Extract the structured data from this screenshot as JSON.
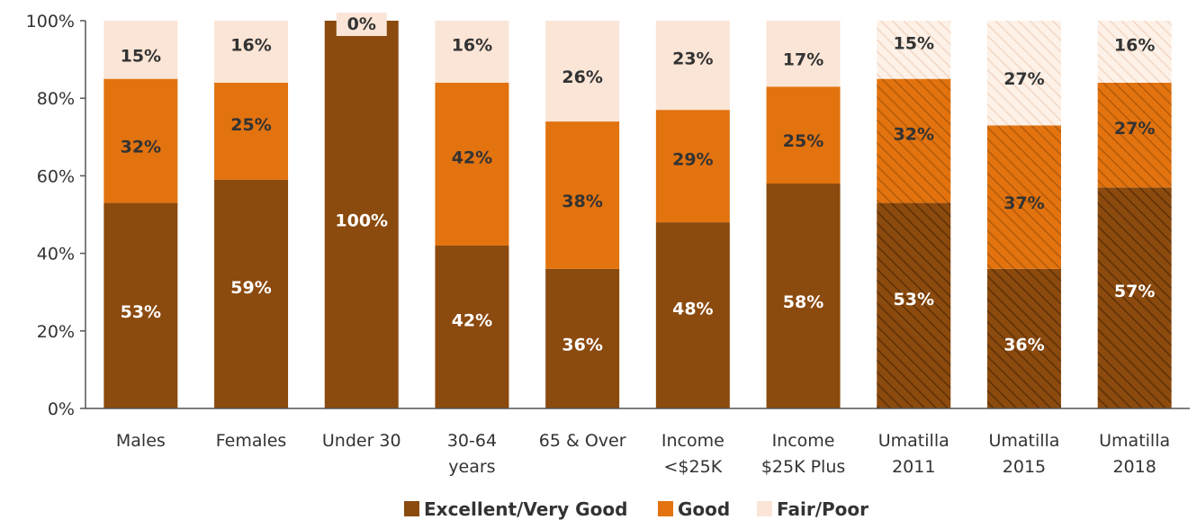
{
  "chart_data": {
    "type": "bar",
    "stacked": true,
    "categories": [
      [
        "Males"
      ],
      [
        "Females"
      ],
      [
        "Under 30"
      ],
      [
        "30-64",
        "years"
      ],
      [
        "65 & Over"
      ],
      [
        "Income",
        "<$25K"
      ],
      [
        "Income",
        "$25K Plus"
      ],
      [
        "Umatilla",
        "2011"
      ],
      [
        "Umatilla",
        "2015"
      ],
      [
        "Umatilla",
        "2018"
      ]
    ],
    "series": [
      {
        "name": "Excellent/Very Good",
        "color": "#8b4a0e",
        "values": [
          53,
          59,
          100,
          42,
          36,
          48,
          58,
          53,
          36,
          57
        ]
      },
      {
        "name": "Good",
        "color": "#e2730f",
        "values": [
          32,
          25,
          0,
          42,
          38,
          29,
          25,
          32,
          37,
          27
        ]
      },
      {
        "name": "Fair/Poor",
        "color": "#fbe5d6",
        "values": [
          15,
          16,
          0,
          16,
          26,
          23,
          17,
          15,
          27,
          16
        ]
      }
    ],
    "data_labels": {
      "Excellent/Very Good": [
        "53%",
        "59%",
        "100%",
        "42%",
        "36%",
        "48%",
        "58%",
        "53%",
        "36%",
        "57%"
      ],
      "Good": [
        "32%",
        "25%",
        "",
        "42%",
        "38%",
        "29%",
        "25%",
        "32%",
        "37%",
        "27%"
      ],
      "Fair/Poor": [
        "15%",
        "16%",
        "0%",
        "16%",
        "26%",
        "23%",
        "17%",
        "15%",
        "27%",
        "16%"
      ]
    },
    "hatched_categories": [
      "Umatilla 2011",
      "Umatilla 2015",
      "Umatilla 2018"
    ],
    "yticks": [
      "0%",
      "20%",
      "40%",
      "60%",
      "80%",
      "100%"
    ],
    "ylim": [
      0,
      100
    ],
    "grid": false,
    "legend_position": "bottom"
  }
}
